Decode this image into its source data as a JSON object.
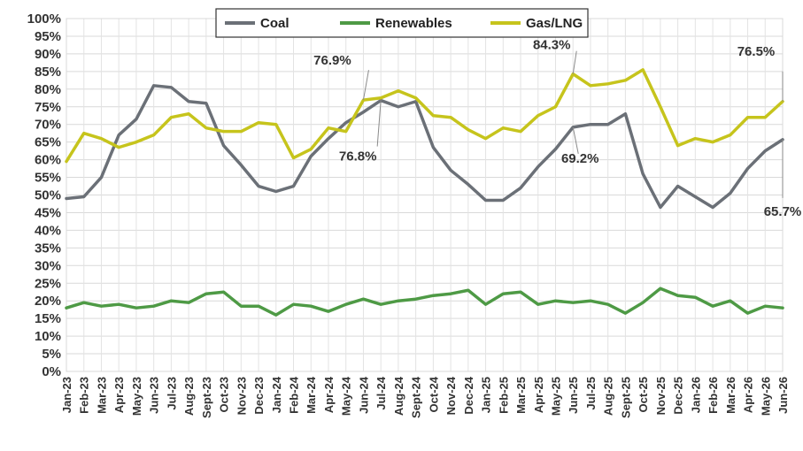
{
  "chart_data": {
    "type": "line",
    "title": "",
    "xlabel": "",
    "ylabel": "",
    "ylim": [
      0,
      100
    ],
    "y_ticks": [
      "0%",
      "5%",
      "10%",
      "15%",
      "20%",
      "25%",
      "30%",
      "35%",
      "40%",
      "45%",
      "50%",
      "55%",
      "60%",
      "65%",
      "70%",
      "75%",
      "80%",
      "85%",
      "90%",
      "95%",
      "100%"
    ],
    "grid": true,
    "legend_position": "top-center",
    "categories": [
      "Jan-23",
      "Feb-23",
      "Mar-23",
      "Apr-23",
      "May-23",
      "Jun-23",
      "Jul-23",
      "Aug-23",
      "Sept-23",
      "Oct-23",
      "Nov-23",
      "Dec-23",
      "Jan-24",
      "Feb-24",
      "Mar-24",
      "Apr-24",
      "May-24",
      "Jun-24",
      "Jul-24",
      "Aug-24",
      "Sept-24",
      "Oct-24",
      "Nov-24",
      "Dec-24",
      "Jan-25",
      "Feb-25",
      "Mar-25",
      "Apr-25",
      "May-25",
      "Jun-25",
      "Jul-25",
      "Aug-25",
      "Sept-25",
      "Oct-25",
      "Nov-25",
      "Dec-25",
      "Jan-26",
      "Feb-26",
      "Mar-26",
      "Apr-26",
      "May-26",
      "Jun-26"
    ],
    "x_tick_labels": [
      "Jan-23",
      "Feb-23",
      "Mar-23",
      "Apr-23",
      "May-23",
      "Jun-23",
      "Jul-23",
      "Aug-23",
      "Sept-23",
      "Oct-23",
      "Nov-23",
      "Dec-23",
      "Jan-24",
      "Feb-24",
      "Mar-24",
      "Apr-24",
      "May-24",
      "Jun-24",
      "Jul-24",
      "Aug-24",
      "Sept-24",
      "Oct-24",
      "Nov-24",
      "Dec-24",
      "Jan-25",
      "Feb-25",
      "Mar-25",
      "Apr-25",
      "May-25",
      "Jun-25",
      "Jul-25",
      "Aug-25",
      "Sept-25",
      "Oct-25",
      "Nov-25",
      "Dec-25",
      "Jan-26",
      "Feb-26",
      "Mar-26",
      "Apr-26",
      "May-26",
      "Jun-26"
    ],
    "series": [
      {
        "name": "Coal",
        "color": "#6b7077",
        "values": [
          49,
          49.5,
          55,
          67,
          71.5,
          81,
          80.5,
          76.5,
          76,
          64,
          58.5,
          52.5,
          51,
          52.5,
          61,
          66,
          70.5,
          73.5,
          76.8,
          75,
          76.5,
          63.5,
          57,
          53,
          48.5,
          48.5,
          52,
          58,
          63,
          69.2,
          70,
          70,
          73,
          56,
          46.5,
          52.5,
          49.5,
          46.5,
          50.5,
          57.5,
          62.5,
          65.7
        ]
      },
      {
        "name": "Renewables",
        "color": "#4e9a45",
        "values": [
          18,
          19.5,
          18.5,
          19,
          18,
          18.5,
          20,
          19.5,
          22,
          22.5,
          18.5,
          18.5,
          16,
          19,
          18.5,
          17,
          19,
          20.5,
          19,
          20,
          20.5,
          21.5,
          22,
          23,
          19,
          22,
          22.5,
          19,
          20,
          19.5,
          20,
          19,
          16.5,
          19.5,
          23.5,
          21.5,
          21,
          18.5,
          20,
          16.5,
          18.5,
          18
        ]
      },
      {
        "name": "Gas/LNG",
        "color": "#c6c41c",
        "values": [
          59.5,
          67.5,
          66,
          63.5,
          65,
          67,
          72,
          73,
          69,
          68,
          68,
          70.5,
          70,
          60.5,
          63,
          69,
          68,
          76.9,
          77.5,
          79.5,
          77.5,
          72.5,
          72,
          68.5,
          66,
          69,
          68,
          72.5,
          75,
          84.3,
          81,
          81.5,
          82.5,
          85.5,
          75,
          64,
          66,
          65,
          67,
          72,
          72,
          76.5
        ]
      }
    ],
    "annotations": [
      {
        "text": "76.9%",
        "series": "Gas/LNG",
        "category": "Jun-24"
      },
      {
        "text": "76.8%",
        "series": "Coal",
        "category": "Jul-24"
      },
      {
        "text": "84.3%",
        "series": "Gas/LNG",
        "category": "Jun-25"
      },
      {
        "text": "69.2%",
        "series": "Coal",
        "category": "Jun-25"
      },
      {
        "text": "76.5%",
        "series": "Gas/LNG",
        "category": "Jun-26"
      },
      {
        "text": "65.7%",
        "series": "Coal",
        "category": "Jun-26"
      }
    ]
  }
}
